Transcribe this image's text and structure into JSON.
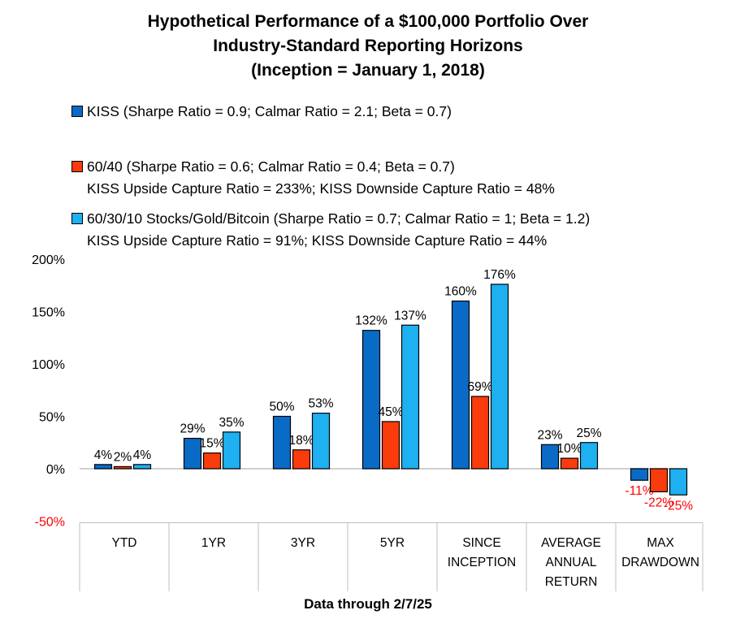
{
  "title_lines": [
    "Hypothetical Performance of a $100,000 Portfolio Over",
    "Industry-Standard Reporting Horizons",
    "(Inception = January 1, 2018)"
  ],
  "legend": [
    {
      "label": "KISS (Sharpe Ratio = 0.9; Calmar Ratio = 2.1; Beta = 0.7)",
      "sub": "",
      "color": "#0a6bc7"
    },
    {
      "label": "60/40 (Sharpe Ratio = 0.6; Calmar Ratio = 0.4; Beta = 0.7)",
      "sub": "KISS Upside Capture Ratio = 233%; KISS Downside Capture Ratio = 48%",
      "color": "#fa3b0c"
    },
    {
      "label": "60/30/10 Stocks/Gold/Bitcoin (Sharpe Ratio = 0.7; Calmar Ratio = 1; Beta = 1.2)",
      "sub": "KISS Upside Capture Ratio = 91%; KISS Downside Capture Ratio = 44%",
      "color": "#1eb0f0"
    }
  ],
  "footer": "Data through 2/7/25",
  "chart_data": {
    "type": "bar",
    "categories": [
      [
        "YTD"
      ],
      [
        "1YR"
      ],
      [
        "3YR"
      ],
      [
        "5YR"
      ],
      [
        "SINCE",
        "INCEPTION"
      ],
      [
        "AVERAGE",
        "ANNUAL",
        "RETURN"
      ],
      [
        "MAX",
        "DRAWDOWN"
      ]
    ],
    "series": [
      {
        "name": "KISS",
        "color": "#0a6bc7",
        "values": [
          4,
          29,
          50,
          132,
          160,
          23,
          -11
        ],
        "labels": [
          "4%",
          "29%",
          "50%",
          "132%",
          "160%",
          "23%",
          "-11%"
        ]
      },
      {
        "name": "60/40",
        "color": "#fa3b0c",
        "values": [
          2,
          15,
          18,
          45,
          69,
          10,
          -22
        ],
        "labels": [
          "2%",
          "15%",
          "18%",
          "45%",
          "69%",
          "10%",
          "-22%"
        ]
      },
      {
        "name": "60/30/10 Stocks/Gold/Bitcoin",
        "color": "#1eb0f0",
        "values": [
          4,
          35,
          53,
          137,
          176,
          25,
          -25
        ],
        "labels": [
          "4%",
          "35%",
          "53%",
          "137%",
          "176%",
          "25%",
          "-25%"
        ]
      }
    ],
    "ylim": [
      -50,
      200
    ],
    "yticks": [
      200,
      150,
      100,
      50,
      0,
      -50
    ],
    "ytick_labels": [
      "200%",
      "150%",
      "100%",
      "50%",
      "0%",
      "-50%"
    ],
    "negative_label_color": "#ff0000",
    "grid": false
  }
}
